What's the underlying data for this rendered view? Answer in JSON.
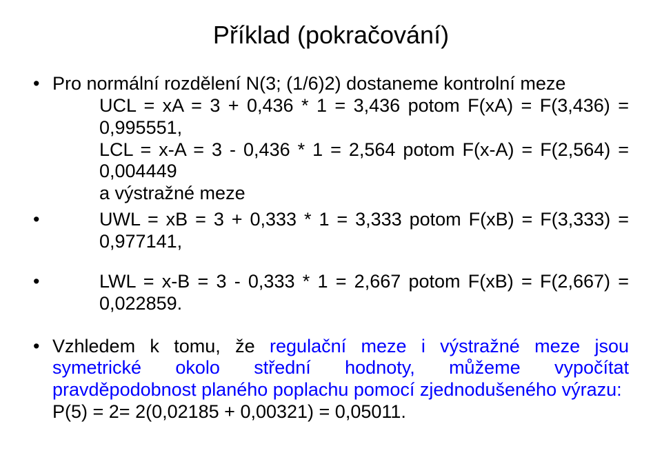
{
  "title": "Příklad (pokračování)",
  "bullets": {
    "b1_line1": "Pro normální rozdělení N(3; (1/6)2) dostaneme kontrolní meze",
    "b1_line2": "UCL = xA = 3 + 0,436 * 1 = 3,436 potom F(xA) = F(3,436) = 0,995551,",
    "b1_line3": "LCL = x-A = 3 - 0,436 * 1 = 2,564 potom F(x-A) = F(2,564) = 0,004449",
    "b1_line4": "a výstražné meze",
    "b2_line1": "UWL = xB = 3 + 0,333 * 1 = 3,333 potom F(xB) = F(3,333) = 0,977141,",
    "b3_line1": "LWL = x-B = 3 - 0,333 * 1 = 2,667 potom F(xB) = F(2,667) = 0,022859.",
    "b4_line1_black": "Vzhledem k tomu, že ",
    "b4_line1_blue": "regulační meze i výstražné meze jsou symetrické okolo střední hodnoty, můžeme vypočítat pravděpodobnost planého poplachu pomocí zjednodušeného výrazu:",
    "b4_line2": "P(5) = 2= 2(0,02185 + 0,00321)  =  0,05011."
  }
}
